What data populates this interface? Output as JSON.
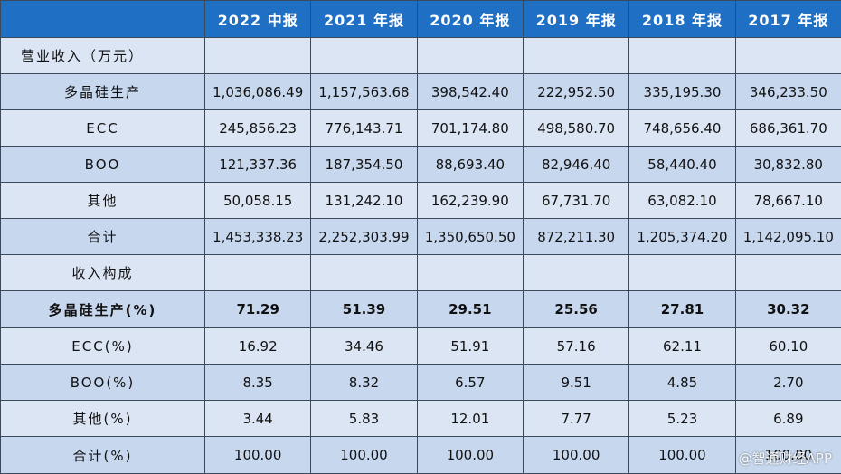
{
  "table": {
    "columns": [
      "2022 中报",
      "2021 年报",
      "2020 年报",
      "2019 年报",
      "2018 年报",
      "2017 年报"
    ],
    "rows": [
      {
        "label": "营业收入（万元）",
        "values": [
          "",
          "",
          "",
          "",
          "",
          ""
        ]
      },
      {
        "label": "多晶硅生产",
        "values": [
          "1,036,086.49",
          "1,157,563.68",
          "398,542.40",
          "222,952.50",
          "335,195.30",
          "346,233.50"
        ]
      },
      {
        "label": "ECC",
        "values": [
          "245,856.23",
          "776,143.71",
          "701,174.80",
          "498,580.70",
          "748,656.40",
          "686,361.70"
        ]
      },
      {
        "label": "BOO",
        "values": [
          "121,337.36",
          "187,354.50",
          "88,693.40",
          "82,946.40",
          "58,440.40",
          "30,832.80"
        ]
      },
      {
        "label": "其他",
        "values": [
          "50,058.15",
          "131,242.10",
          "162,239.90",
          "67,731.70",
          "63,082.10",
          "78,667.10"
        ]
      },
      {
        "label": "合计",
        "values": [
          "1,453,338.23",
          "2,252,303.99",
          "1,350,650.50",
          "872,211.30",
          "1,205,374.20",
          "1,142,095.10"
        ]
      },
      {
        "label": "收入构成",
        "values": [
          "",
          "",
          "",
          "",
          "",
          ""
        ]
      },
      {
        "label": "多晶硅生产(%)",
        "values": [
          "71.29",
          "51.39",
          "29.51",
          "25.56",
          "27.81",
          "30.32"
        ]
      },
      {
        "label": "ECC(%)",
        "values": [
          "16.92",
          "34.46",
          "51.91",
          "57.16",
          "62.11",
          "60.10"
        ]
      },
      {
        "label": "BOO(%)",
        "values": [
          "8.35",
          "8.32",
          "6.57",
          "9.51",
          "4.85",
          "2.70"
        ]
      },
      {
        "label": "其他(%)",
        "values": [
          "3.44",
          "5.83",
          "12.01",
          "7.77",
          "5.23",
          "6.89"
        ]
      },
      {
        "label": "合计(%)",
        "values": [
          "100.00",
          "100.00",
          "100.00",
          "100.00",
          "100.00",
          "100.00"
        ]
      }
    ]
  },
  "watermark": "@智通财经APP",
  "colors": {
    "header": "#1f6fc4",
    "row_light": "#dbe5f3",
    "row_dark": "#c6d7ee"
  }
}
